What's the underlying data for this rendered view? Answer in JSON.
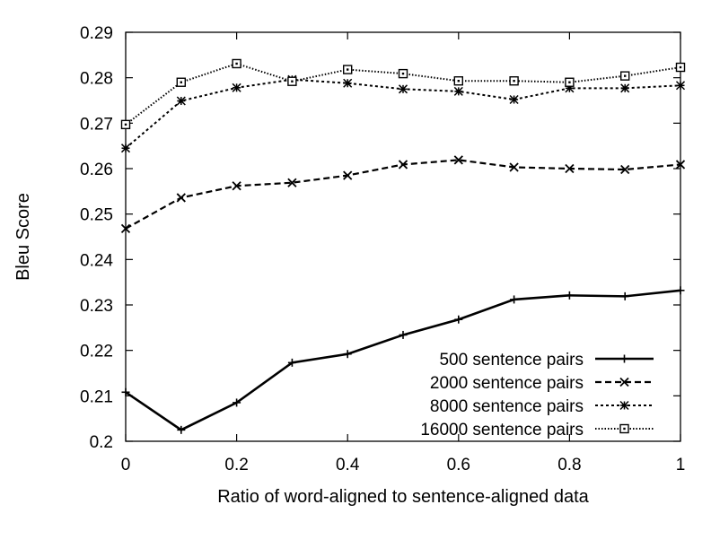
{
  "chart_data": {
    "type": "line",
    "title": "",
    "xlabel": "Ratio of word-aligned to sentence-aligned data",
    "ylabel": "Bleu Score",
    "xlim": [
      0,
      1
    ],
    "ylim": [
      0.2,
      0.29
    ],
    "xticks": [
      0,
      0.2,
      0.4,
      0.6,
      0.8,
      1.0
    ],
    "xtick_labels": [
      "0",
      "0.2",
      "0.4",
      "0.6",
      "0.8",
      "1"
    ],
    "yticks": [
      0.2,
      0.21,
      0.22,
      0.23,
      0.24,
      0.25,
      0.26,
      0.27,
      0.28,
      0.29
    ],
    "ytick_labels": [
      "0.2",
      "0.21",
      "0.22",
      "0.23",
      "0.24",
      "0.25",
      "0.26",
      "0.27",
      "0.28",
      "0.29"
    ],
    "grid": false,
    "legend_position": "bottom-right",
    "x": [
      0,
      0.1,
      0.2,
      0.3,
      0.4,
      0.5,
      0.6,
      0.7,
      0.8,
      0.9,
      1.0
    ],
    "series": [
      {
        "name": "500 sentence pairs",
        "marker": "plus",
        "line_style": "solid",
        "values": [
          0.2108,
          0.2025,
          0.2085,
          0.2173,
          0.2192,
          0.2234,
          0.2268,
          0.2312,
          0.2321,
          0.2319,
          0.2332
        ]
      },
      {
        "name": "2000 sentence pairs",
        "marker": "cross",
        "line_style": "dashed",
        "values": [
          0.2468,
          0.2536,
          0.2562,
          0.2569,
          0.2585,
          0.2609,
          0.2619,
          0.2603,
          0.26,
          0.2598,
          0.2609
        ]
      },
      {
        "name": "8000 sentence pairs",
        "marker": "star",
        "line_style": "dotted",
        "values": [
          0.2645,
          0.2749,
          0.2778,
          0.2796,
          0.2788,
          0.2775,
          0.277,
          0.2752,
          0.2777,
          0.2777,
          0.2783
        ]
      },
      {
        "name": "16000 sentence pairs",
        "marker": "square",
        "line_style": "fine-dotted",
        "values": [
          0.2697,
          0.279,
          0.2831,
          0.2792,
          0.2818,
          0.2809,
          0.2793,
          0.2793,
          0.279,
          0.2804,
          0.2823
        ]
      }
    ]
  }
}
